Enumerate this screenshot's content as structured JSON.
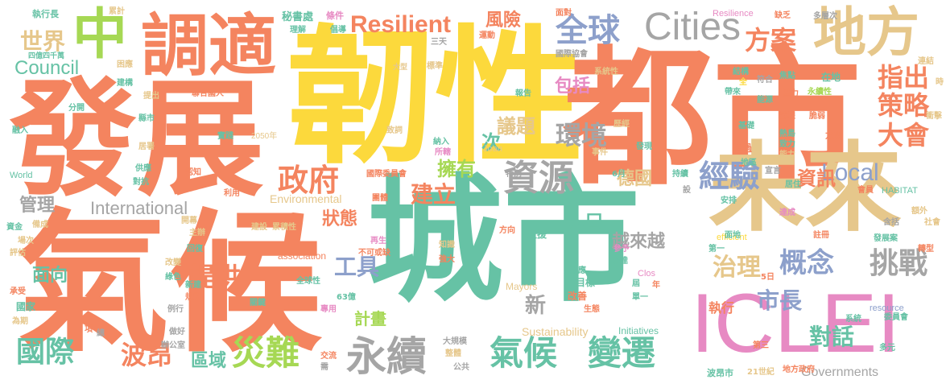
{
  "palette": {
    "orange": "#f4845f",
    "teal": "#66c2a5",
    "yellow": "#fcd93c",
    "tan": "#e6c78b",
    "green": "#a6d854",
    "blue": "#8da0cb",
    "pink": "#e78ac3",
    "gray": "#a5a5a5"
  },
  "words": [
    {
      "text": "發展",
      "color": "orange"
    },
    {
      "text": "韌性",
      "color": "yellow"
    },
    {
      "text": "都市",
      "color": "orange"
    },
    {
      "text": "氣候",
      "color": "orange"
    },
    {
      "text": "城市",
      "color": "teal"
    },
    {
      "text": "未來",
      "color": "tan"
    },
    {
      "text": "ICLEI",
      "color": "pink"
    },
    {
      "text": "中",
      "color": "green"
    },
    {
      "text": "調適",
      "color": "orange"
    },
    {
      "text": "地方",
      "color": "tan"
    },
    {
      "text": "Cities",
      "color": "gray"
    },
    {
      "text": "Resilient",
      "color": "orange"
    },
    {
      "text": "全球",
      "color": "blue"
    },
    {
      "text": "方案",
      "color": "orange"
    },
    {
      "text": "指出",
      "color": "orange"
    },
    {
      "text": "策略",
      "color": "orange"
    },
    {
      "text": "大會",
      "color": "orange"
    },
    {
      "text": "Local",
      "color": "blue"
    },
    {
      "text": "資訊",
      "color": "orange"
    },
    {
      "text": "經驗",
      "color": "blue"
    },
    {
      "text": "資源",
      "color": "gray"
    },
    {
      "text": "環境",
      "color": "gray"
    },
    {
      "text": "政府",
      "color": "orange"
    },
    {
      "text": "建立",
      "color": "orange"
    },
    {
      "text": "擁有",
      "color": "green"
    },
    {
      "text": "議題",
      "color": "tan"
    },
    {
      "text": "風險",
      "color": "orange"
    },
    {
      "text": "包括",
      "color": "pink"
    },
    {
      "text": "次",
      "color": "teal"
    },
    {
      "text": "世界",
      "color": "tan"
    },
    {
      "text": "Council",
      "color": "teal"
    },
    {
      "text": "International",
      "color": "gray"
    },
    {
      "text": "管理",
      "color": "gray"
    },
    {
      "text": "狀態",
      "color": "orange"
    },
    {
      "text": "工具",
      "color": "blue"
    },
    {
      "text": "人口",
      "color": "teal"
    },
    {
      "text": "越來越",
      "color": "gray"
    },
    {
      "text": "德國",
      "color": "tan"
    },
    {
      "text": "治理",
      "color": "tan"
    },
    {
      "text": "概念",
      "color": "blue"
    },
    {
      "text": "挑戰",
      "color": "gray"
    },
    {
      "text": "市長",
      "color": "blue"
    },
    {
      "text": "對話",
      "color": "teal"
    },
    {
      "text": "國際",
      "color": "teal"
    },
    {
      "text": "波昂",
      "color": "orange"
    },
    {
      "text": "災難",
      "color": "green"
    },
    {
      "text": "永續",
      "color": "gray"
    },
    {
      "text": "氣候",
      "color": "teal"
    },
    {
      "text": "變遷",
      "color": "teal"
    },
    {
      "text": "面向",
      "color": "teal"
    },
    {
      "text": "提供",
      "color": "orange"
    },
    {
      "text": "新",
      "color": "gray"
    },
    {
      "text": "計畫",
      "color": "green"
    },
    {
      "text": "區域",
      "color": "teal"
    },
    {
      "text": "執行",
      "color": "orange"
    },
    {
      "text": "Governments",
      "color": "gray"
    },
    {
      "text": "Environmental",
      "color": "tan"
    },
    {
      "text": "Sustainability",
      "color": "tan"
    },
    {
      "text": "Initiatives",
      "color": "teal"
    },
    {
      "text": "resource",
      "color": "blue"
    },
    {
      "text": "efficient",
      "color": "yellow"
    },
    {
      "text": "association",
      "color": "orange"
    },
    {
      "text": "Mayors",
      "color": "tan"
    },
    {
      "text": "Clos",
      "color": "pink"
    },
    {
      "text": "World",
      "color": "teal"
    },
    {
      "text": "Joan",
      "color": "tan"
    },
    {
      "text": "HABITAT",
      "color": "teal"
    },
    {
      "text": "Resilience",
      "color": "pink"
    },
    {
      "text": "執行長",
      "color": "teal"
    },
    {
      "text": "累計",
      "color": "tan"
    },
    {
      "text": "秘書處",
      "color": "teal"
    },
    {
      "text": "條件",
      "color": "pink"
    },
    {
      "text": "面對",
      "color": "orange"
    },
    {
      "text": "缺乏",
      "color": "orange"
    },
    {
      "text": "多層次",
      "color": "gray"
    },
    {
      "text": "理解",
      "color": "teal"
    },
    {
      "text": "倡導",
      "color": "teal"
    },
    {
      "text": "三天",
      "color": "gray"
    },
    {
      "text": "運動",
      "color": "orange"
    },
    {
      "text": "四億四千萬",
      "color": "teal"
    },
    {
      "text": "困應",
      "color": "tan"
    },
    {
      "text": "國際協會",
      "color": "gray"
    },
    {
      "text": "大型",
      "color": "tan"
    },
    {
      "text": "標準",
      "color": "tan"
    },
    {
      "text": "連結",
      "color": "tan"
    },
    {
      "text": "時",
      "color": "tan"
    },
    {
      "text": "建構",
      "color": "teal"
    },
    {
      "text": "系統性",
      "color": "tan"
    },
    {
      "text": "結構",
      "color": "teal"
    },
    {
      "text": "符合",
      "color": "gray"
    },
    {
      "text": "焦點",
      "color": "teal"
    },
    {
      "text": "在地",
      "color": "teal"
    },
    {
      "text": "提出",
      "color": "tan"
    },
    {
      "text": "聯合國人",
      "color": "orange"
    },
    {
      "text": "報告",
      "color": "teal"
    },
    {
      "text": "全",
      "color": "yellow"
    },
    {
      "text": "帶來",
      "color": "teal"
    },
    {
      "text": "分開",
      "color": "teal"
    },
    {
      "text": "壓力",
      "color": "orange"
    },
    {
      "text": "永續性",
      "color": "green"
    },
    {
      "text": "能源",
      "color": "teal"
    },
    {
      "text": "縣市",
      "color": "teal"
    },
    {
      "text": "歷經",
      "color": "tan"
    },
    {
      "text": "議程",
      "color": "orange"
    },
    {
      "text": "脆弱",
      "color": "orange"
    },
    {
      "text": "融入",
      "color": "teal"
    },
    {
      "text": "致詞",
      "color": "tan"
    },
    {
      "text": "基礎",
      "color": "teal"
    },
    {
      "text": "熱島",
      "color": "teal"
    },
    {
      "text": "實踐",
      "color": "teal"
    },
    {
      "text": "2050年",
      "color": "tan"
    },
    {
      "text": "致力",
      "color": "teal"
    },
    {
      "text": "方法",
      "color": "orange"
    },
    {
      "text": "居署",
      "color": "tan"
    },
    {
      "text": "納入",
      "color": "teal"
    },
    {
      "text": "能力",
      "color": "tan"
    },
    {
      "text": "衝擊",
      "color": "tan"
    },
    {
      "text": "供應",
      "color": "teal"
    },
    {
      "text": "所轄",
      "color": "pink"
    },
    {
      "text": "事件",
      "color": "tan"
    },
    {
      "text": "發現",
      "color": "teal"
    },
    {
      "text": "超過",
      "color": "orange"
    },
    {
      "text": "地區",
      "color": "teal"
    },
    {
      "text": "認知",
      "color": "orange"
    },
    {
      "text": "國際委員會",
      "color": "orange"
    },
    {
      "text": "6月",
      "color": "teal"
    },
    {
      "text": "持續",
      "color": "teal"
    },
    {
      "text": "宣言",
      "color": "gray"
    },
    {
      "text": "居住",
      "color": "teal"
    },
    {
      "text": "對抗",
      "color": "teal"
    },
    {
      "text": "特別",
      "color": "gray"
    },
    {
      "text": "設",
      "color": "gray"
    },
    {
      "text": "會員",
      "color": "orange"
    },
    {
      "text": "利用",
      "color": "orange"
    },
    {
      "text": "團體",
      "color": "orange"
    },
    {
      "text": "安排",
      "color": "teal"
    },
    {
      "text": "資金",
      "color": "teal"
    },
    {
      "text": "開幕",
      "color": "tan"
    },
    {
      "text": "建設",
      "color": "tan"
    },
    {
      "text": "累積性",
      "color": "tan"
    },
    {
      "text": "方向",
      "color": "orange"
    },
    {
      "text": "支援",
      "color": "teal"
    },
    {
      "text": "達成",
      "color": "pink"
    },
    {
      "text": "額外",
      "color": "tan"
    },
    {
      "text": "含括",
      "color": "gray"
    },
    {
      "text": "社會",
      "color": "tan"
    },
    {
      "text": "面地",
      "color": "teal"
    },
    {
      "text": "註冊",
      "color": "orange"
    },
    {
      "text": "發展案",
      "color": "teal"
    },
    {
      "text": "轉型",
      "color": "orange"
    },
    {
      "text": "場次",
      "color": "tan"
    },
    {
      "text": "主辦",
      "color": "tan"
    },
    {
      "text": "評估",
      "color": "tan"
    },
    {
      "text": "回復",
      "color": "teal"
    },
    {
      "text": "再生",
      "color": "pink"
    },
    {
      "text": "知識",
      "color": "tan"
    },
    {
      "text": "不可或缺",
      "color": "orange"
    },
    {
      "text": "強大",
      "color": "orange"
    },
    {
      "text": "參予",
      "color": "pink"
    },
    {
      "text": "第一",
      "color": "teal"
    },
    {
      "text": "備成",
      "color": "tan"
    },
    {
      "text": "改變",
      "color": "tan"
    },
    {
      "text": "效應",
      "color": "teal"
    },
    {
      "text": "多達",
      "color": "teal"
    },
    {
      "text": "5日",
      "color": "orange"
    },
    {
      "text": "單一",
      "color": "teal"
    },
    {
      "text": "年",
      "color": "orange"
    },
    {
      "text": "屆",
      "color": "teal"
    },
    {
      "text": "目標",
      "color": "teal"
    },
    {
      "text": "改善",
      "color": "orange"
    },
    {
      "text": "全球性",
      "color": "teal"
    },
    {
      "text": "綠色",
      "color": "teal"
    },
    {
      "text": "承受",
      "color": "orange"
    },
    {
      "text": "規劃",
      "color": "orange"
    },
    {
      "text": "新建",
      "color": "teal"
    },
    {
      "text": "63億",
      "color": "teal"
    },
    {
      "text": "國家",
      "color": "teal"
    },
    {
      "text": "例行",
      "color": "gray"
    },
    {
      "text": "關鍵",
      "color": "teal"
    },
    {
      "text": "為期",
      "color": "tan"
    },
    {
      "text": "項",
      "color": "orange"
    },
    {
      "text": "總",
      "color": "gray"
    },
    {
      "text": "專用",
      "color": "pink"
    },
    {
      "text": "生態",
      "color": "orange"
    },
    {
      "text": "系統",
      "color": "teal"
    },
    {
      "text": "委員會",
      "color": "teal"
    },
    {
      "text": "做好",
      "color": "gray"
    },
    {
      "text": "辦公室",
      "color": "gray"
    },
    {
      "text": "大規模",
      "color": "gray"
    },
    {
      "text": "交流",
      "color": "orange"
    },
    {
      "text": "需",
      "color": "gray"
    },
    {
      "text": "第三",
      "color": "orange"
    },
    {
      "text": "多元",
      "color": "teal"
    },
    {
      "text": "整體",
      "color": "tan"
    },
    {
      "text": "公共",
      "color": "gray"
    },
    {
      "text": "波昂市",
      "color": "teal"
    },
    {
      "text": "21世紀",
      "color": "tan"
    },
    {
      "text": "地方政府",
      "color": "orange"
    }
  ]
}
